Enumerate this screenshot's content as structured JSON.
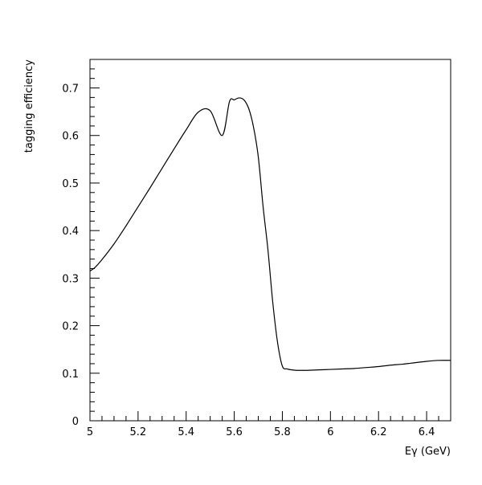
{
  "chart_data": {
    "type": "line",
    "title": "",
    "xlabel": "Eγ (GeV)",
    "ylabel": "tagging efficiency",
    "xlim": [
      5.0,
      6.5
    ],
    "ylim": [
      0.0,
      0.76
    ],
    "xticks": [
      5,
      5.2,
      5.4,
      5.6,
      5.8,
      6,
      6.2,
      6.4
    ],
    "xtick_labels": [
      "5",
      "5.2",
      "5.4",
      "5.6",
      "5.8",
      "6",
      "6.2",
      "6.4"
    ],
    "yticks": [
      0,
      0.1,
      0.2,
      0.3,
      0.4,
      0.5,
      0.6,
      0.7
    ],
    "ytick_labels": [
      "0",
      "0.1",
      "0.2",
      "0.3",
      "0.4",
      "0.5",
      "0.6",
      "0.7"
    ],
    "x_minor_step": 0.05,
    "y_minor_step": 0.02,
    "grid": false,
    "legend": "none",
    "line_color": "#000000",
    "series": [
      {
        "x": [
          5.0,
          5.02,
          5.05,
          5.1,
          5.15,
          5.2,
          5.25,
          5.3,
          5.35,
          5.4,
          5.45,
          5.5,
          5.55,
          5.58,
          5.6,
          5.62,
          5.64,
          5.66,
          5.68,
          5.7,
          5.72,
          5.74,
          5.76,
          5.78,
          5.8,
          5.82,
          5.84,
          5.86,
          5.88,
          5.9,
          5.95,
          6.0,
          6.05,
          6.1,
          6.15,
          6.2,
          6.25,
          6.3,
          6.35,
          6.4,
          6.45,
          6.5
        ],
        "values": [
          0.315,
          0.322,
          0.339,
          0.372,
          0.41,
          0.45,
          0.49,
          0.531,
          0.572,
          0.612,
          0.649,
          0.652,
          0.6,
          0.671,
          0.675,
          0.679,
          0.675,
          0.657,
          0.618,
          0.555,
          0.45,
          0.36,
          0.25,
          0.165,
          0.115,
          0.109,
          0.107,
          0.106,
          0.106,
          0.106,
          0.107,
          0.108,
          0.109,
          0.11,
          0.112,
          0.114,
          0.117,
          0.119,
          0.122,
          0.125,
          0.127,
          0.127
        ]
      }
    ]
  }
}
